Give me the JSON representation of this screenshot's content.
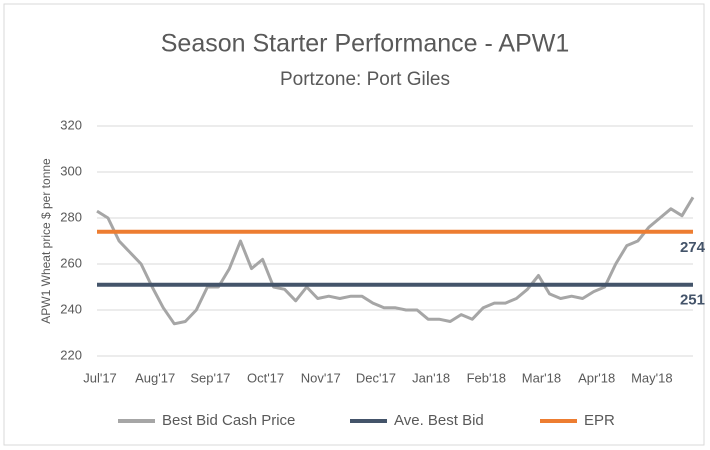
{
  "chart_data": {
    "type": "line",
    "title": "Season Starter Performance - APW1",
    "subtitle": "Portzone: Port Giles",
    "y_label": "APW1 Wheat price $ per tonne",
    "categories": [
      "Jul'17",
      null,
      null,
      null,
      null,
      "Aug'17",
      null,
      null,
      null,
      null,
      "Sep'17",
      null,
      null,
      null,
      null,
      "Oct'17",
      null,
      null,
      null,
      null,
      "Nov'17",
      null,
      null,
      null,
      null,
      "Dec'17",
      null,
      null,
      null,
      null,
      "Jan'18",
      null,
      null,
      null,
      null,
      "Feb'18",
      null,
      null,
      null,
      null,
      "Mar'18",
      null,
      null,
      null,
      null,
      "Apr'18",
      null,
      null,
      null,
      null,
      "May'18",
      null,
      null,
      null,
      null
    ],
    "series": [
      {
        "name": "Best Bid Cash Price",
        "color": "#a6a6a6",
        "values": [
          283,
          280,
          270,
          265,
          260,
          250,
          241,
          234,
          235,
          240,
          250,
          250,
          258,
          270,
          258,
          262,
          250,
          249,
          244,
          250,
          245,
          246,
          245,
          246,
          246,
          243,
          241,
          241,
          240,
          240,
          236,
          236,
          235,
          238,
          236,
          241,
          243,
          243,
          245,
          249,
          255,
          247,
          245,
          246,
          245,
          248,
          250,
          260,
          268,
          270,
          276,
          280,
          284,
          281,
          289
        ]
      },
      {
        "name": "Ave. Best Bid",
        "color": "#44546a",
        "value": 251
      },
      {
        "name": "EPR",
        "color": "#ed7d31",
        "value": 274
      }
    ],
    "ylim": [
      220,
      320
    ],
    "yticks": [
      220,
      240,
      260,
      280,
      300,
      320
    ],
    "grid": true,
    "legend": "bottom"
  }
}
